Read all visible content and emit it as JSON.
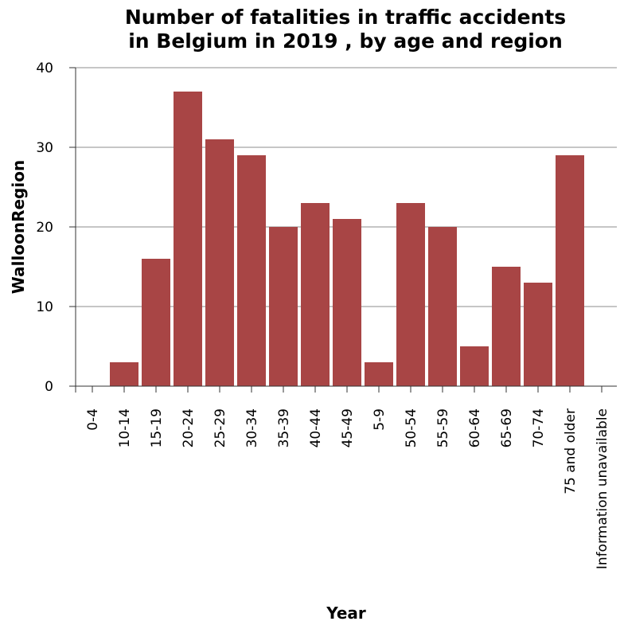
{
  "chart_data": {
    "type": "bar",
    "title_lines": [
      "Number of fatalities in traffic accidents",
      "in Belgium in 2019 , by age and region"
    ],
    "xlabel": "Year",
    "ylabel": "WalloonRegion",
    "ylim": [
      0,
      40
    ],
    "yticks": [
      0,
      10,
      20,
      30,
      40
    ],
    "grid": "horizontal",
    "colors": {
      "bar": "#a84545",
      "grid": "#8c8c8c",
      "axis": "#333333"
    },
    "categories": [
      "0-4",
      "10-14",
      "15-19",
      "20-24",
      "25-29",
      "30-34",
      "35-39",
      "40-44",
      "45-49",
      "5-9",
      "50-54",
      "55-59",
      "60-64",
      "65-69",
      "70-74",
      "75 and older",
      "Information unavailable"
    ],
    "values": [
      0,
      3,
      16,
      37,
      31,
      29,
      20,
      23,
      21,
      3,
      23,
      20,
      5,
      15,
      13,
      29,
      0
    ]
  }
}
